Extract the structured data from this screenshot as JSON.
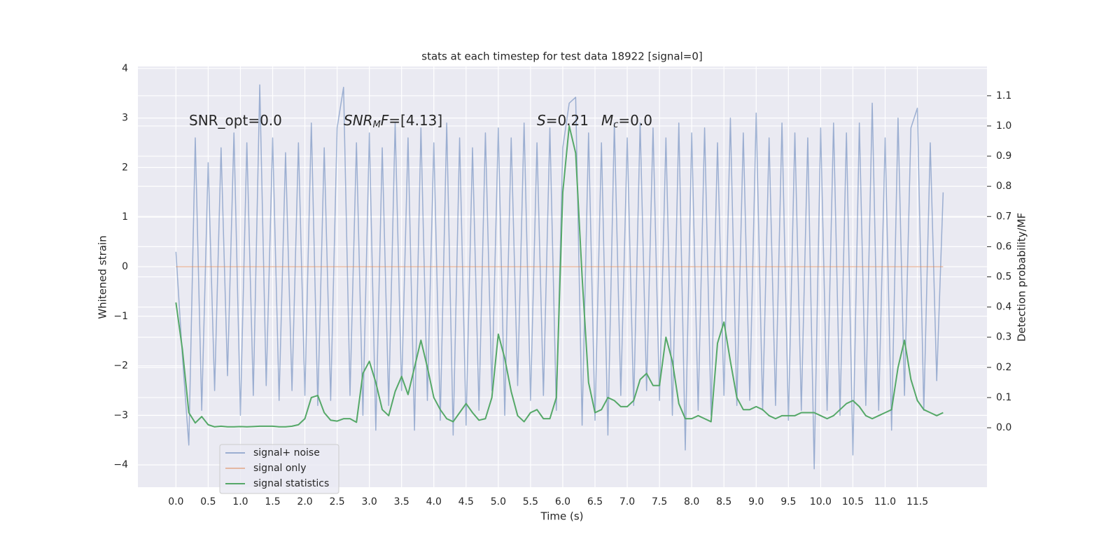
{
  "chart_data": {
    "type": "line",
    "title": "stats at each timestep for test data 18922 [signal=0]",
    "xlabel": "Time (s)",
    "ylabel": "Whitened strain",
    "y2label": "Detection probability/MF",
    "annotations": [
      [
        {
          "text": "SNR_opt=0.0",
          "style": "normal"
        }
      ],
      [
        {
          "text": "SNR",
          "style": "italic"
        },
        {
          "text": "M",
          "style": "sub"
        },
        {
          "text": "F",
          "style": "italic"
        },
        {
          "text": "=[4.13]",
          "style": "normal"
        }
      ],
      [
        {
          "text": "S",
          "style": "italic"
        },
        {
          "text": "=0.21",
          "style": "normal"
        }
      ],
      [
        {
          "text": "M",
          "style": "italic"
        },
        {
          "text": "c",
          "style": "sub"
        },
        {
          "text": "=0.0",
          "style": "normal"
        }
      ]
    ],
    "x": [
      0,
      0.1,
      0.2,
      0.3,
      0.4,
      0.5,
      0.6,
      0.7,
      0.8,
      0.9,
      1,
      1.1,
      1.2,
      1.3,
      1.4,
      1.5,
      1.6,
      1.7,
      1.8,
      1.9,
      2,
      2.1,
      2.2,
      2.3,
      2.4,
      2.5,
      2.6,
      2.7,
      2.8,
      2.9,
      3,
      3.1,
      3.2,
      3.3,
      3.4,
      3.5,
      3.6,
      3.7,
      3.8,
      3.9,
      4,
      4.1,
      4.2,
      4.3,
      4.4,
      4.5,
      4.6,
      4.7,
      4.8,
      4.9,
      5,
      5.1,
      5.2,
      5.3,
      5.4,
      5.5,
      5.6,
      5.7,
      5.8,
      5.9,
      6,
      6.1,
      6.2,
      6.3,
      6.4,
      6.5,
      6.6,
      6.7,
      6.8,
      6.9,
      7,
      7.1,
      7.2,
      7.3,
      7.4,
      7.5,
      7.6,
      7.7,
      7.8,
      7.9,
      8,
      8.1,
      8.2,
      8.3,
      8.4,
      8.5,
      8.6,
      8.7,
      8.8,
      8.9,
      9,
      9.1,
      9.2,
      9.3,
      9.4,
      9.5,
      9.6,
      9.7,
      9.8,
      9.9,
      10,
      10.1,
      10.2,
      10.3,
      10.4,
      10.5,
      10.6,
      10.7,
      10.8,
      10.9,
      11,
      11.1,
      11.2,
      11.3,
      11.4,
      11.5,
      11.6,
      11.7,
      11.8,
      11.9
    ],
    "series": [
      {
        "name": "signal+ noise",
        "color": "#4c72b0",
        "opacity": 0.5,
        "axis": "y",
        "values": [
          0.3,
          -1.8,
          -3.6,
          2.6,
          -2.9,
          2.1,
          -2.5,
          2.4,
          -2.2,
          2.7,
          -3.0,
          2.5,
          -2.6,
          3.67,
          -2.4,
          2.6,
          -2.7,
          2.3,
          -2.5,
          2.5,
          -2.6,
          2.9,
          -2.8,
          2.4,
          -2.7,
          2.8,
          3.62,
          -2.6,
          2.5,
          -3.0,
          2.7,
          -3.3,
          2.4,
          -2.8,
          2.9,
          -2.5,
          2.6,
          -3.3,
          2.8,
          -2.7,
          2.5,
          -3.1,
          2.9,
          -3.4,
          2.6,
          -3.2,
          2.4,
          -2.9,
          2.7,
          -2.5,
          2.8,
          -3.0,
          2.6,
          -2.4,
          2.9,
          -2.7,
          2.5,
          -2.6,
          2.8,
          -2.9,
          2.4,
          3.3,
          3.42,
          -3.2,
          2.7,
          -3.1,
          2.5,
          -3.4,
          2.9,
          -2.6,
          2.6,
          -2.8,
          2.9,
          -2.5,
          2.8,
          -2.7,
          2.6,
          -3.0,
          2.9,
          -3.7,
          2.7,
          -2.9,
          2.8,
          -3.0,
          2.5,
          -2.6,
          3.0,
          -2.8,
          2.7,
          -2.7,
          3.1,
          -2.9,
          2.6,
          -2.8,
          2.9,
          -3.1,
          2.7,
          -2.9,
          2.6,
          -4.08,
          2.8,
          -2.9,
          2.9,
          -3.0,
          2.7,
          -3.8,
          2.9,
          -2.8,
          3.3,
          -2.9,
          2.6,
          -3.3,
          3.0,
          -2.6,
          2.8,
          3.2,
          -2.9,
          2.5,
          -2.3,
          1.5
        ]
      },
      {
        "name": "signal only",
        "color": "#dd8452",
        "opacity": 0.5,
        "axis": "y",
        "values": [
          0,
          0,
          0,
          0,
          0,
          0,
          0,
          0,
          0,
          0,
          0,
          0,
          0,
          0,
          0,
          0,
          0,
          0,
          0,
          0,
          0,
          0,
          0,
          0,
          0,
          0,
          0,
          0,
          0,
          0,
          0,
          0,
          0,
          0,
          0,
          0,
          0,
          0,
          0,
          0,
          0,
          0,
          0,
          0,
          0,
          0,
          0,
          0,
          0,
          0,
          0,
          0,
          0,
          0,
          0,
          0,
          0,
          0,
          0,
          0,
          0,
          0,
          0,
          0,
          0,
          0,
          0,
          0,
          0,
          0,
          0,
          0,
          0,
          0,
          0,
          0,
          0,
          0,
          0,
          0,
          0,
          0,
          0,
          0,
          0,
          0,
          0,
          0,
          0,
          0,
          0,
          0,
          0,
          0,
          0,
          0,
          0,
          0,
          0,
          0,
          0,
          0,
          0,
          0,
          0,
          0,
          0,
          0,
          0,
          0,
          0,
          0,
          0,
          0,
          0,
          0,
          0,
          0,
          0,
          0
        ]
      },
      {
        "name": "signal statistics",
        "color": "#55a868",
        "opacity": 1,
        "axis": "y2",
        "values": [
          0.415,
          0.26,
          0.05,
          0.016,
          0.037,
          0.01,
          0.003,
          0.005,
          0.003,
          0.003,
          0.004,
          0.003,
          0.004,
          0.005,
          0.005,
          0.005,
          0.003,
          0.003,
          0.005,
          0.01,
          0.03,
          0.1,
          0.107,
          0.05,
          0.025,
          0.022,
          0.03,
          0.03,
          0.018,
          0.18,
          0.22,
          0.15,
          0.06,
          0.04,
          0.12,
          0.17,
          0.11,
          0.2,
          0.29,
          0.2,
          0.1,
          0.06,
          0.03,
          0.02,
          0.05,
          0.08,
          0.05,
          0.025,
          0.03,
          0.1,
          0.31,
          0.23,
          0.12,
          0.04,
          0.02,
          0.05,
          0.06,
          0.03,
          0.03,
          0.1,
          0.78,
          1.0,
          0.91,
          0.5,
          0.15,
          0.05,
          0.06,
          0.1,
          0.09,
          0.07,
          0.07,
          0.09,
          0.16,
          0.18,
          0.14,
          0.14,
          0.3,
          0.22,
          0.08,
          0.03,
          0.03,
          0.04,
          0.03,
          0.02,
          0.28,
          0.35,
          0.22,
          0.1,
          0.06,
          0.06,
          0.07,
          0.06,
          0.04,
          0.03,
          0.04,
          0.04,
          0.04,
          0.05,
          0.05,
          0.05,
          0.04,
          0.03,
          0.04,
          0.06,
          0.08,
          0.09,
          0.07,
          0.04,
          0.03,
          0.04,
          0.05,
          0.06,
          0.2,
          0.29,
          0.16,
          0.09,
          0.06,
          0.05,
          0.04,
          0.05
        ]
      }
    ],
    "xlim": [
      -0.59,
      12.58
    ],
    "ylim": [
      -4.45,
      4.04
    ],
    "y2lim": [
      -0.197,
      1.197
    ],
    "xticks": [
      {
        "value": 0,
        "label": "0.0"
      },
      {
        "value": 0.5,
        "label": "0.5"
      },
      {
        "value": 1,
        "label": "1.0"
      },
      {
        "value": 1.5,
        "label": "1.5"
      },
      {
        "value": 2,
        "label": "2.0"
      },
      {
        "value": 2.5,
        "label": "2.5"
      },
      {
        "value": 3,
        "label": "3.0"
      },
      {
        "value": 3.5,
        "label": "3.5"
      },
      {
        "value": 4,
        "label": "4.0"
      },
      {
        "value": 4.5,
        "label": "4.5"
      },
      {
        "value": 5,
        "label": "5.0"
      },
      {
        "value": 5.5,
        "label": "5.5"
      },
      {
        "value": 6,
        "label": "6.0"
      },
      {
        "value": 6.5,
        "label": "6.5"
      },
      {
        "value": 7,
        "label": "7.0"
      },
      {
        "value": 7.5,
        "label": "7.5"
      },
      {
        "value": 8,
        "label": "8.0"
      },
      {
        "value": 8.5,
        "label": "8.5"
      },
      {
        "value": 9,
        "label": "9.0"
      },
      {
        "value": 9.5,
        "label": "9.5"
      },
      {
        "value": 10,
        "label": "10.0"
      },
      {
        "value": 10.5,
        "label": "10.5"
      },
      {
        "value": 11,
        "label": "11.0"
      },
      {
        "value": 11.5,
        "label": "11.5"
      }
    ],
    "yticks": [
      {
        "value": -4,
        "label": "−4"
      },
      {
        "value": -3,
        "label": "−3"
      },
      {
        "value": -2,
        "label": "−2"
      },
      {
        "value": -1,
        "label": "−1"
      },
      0,
      1,
      2,
      3,
      4
    ],
    "y2ticks": [
      {
        "value": 0,
        "label": "0.0"
      },
      {
        "value": 0.1,
        "label": "0.1"
      },
      {
        "value": 0.2,
        "label": "0.2"
      },
      {
        "value": 0.3,
        "label": "0.3"
      },
      {
        "value": 0.4,
        "label": "0.4"
      },
      {
        "value": 0.5,
        "label": "0.5"
      },
      {
        "value": 0.6,
        "label": "0.6"
      },
      {
        "value": 0.7,
        "label": "0.7"
      },
      {
        "value": 0.8,
        "label": "0.8"
      },
      {
        "value": 0.9,
        "label": "0.9"
      },
      {
        "value": 1,
        "label": "1.0"
      },
      {
        "value": 1.1,
        "label": "1.1"
      }
    ],
    "grid": true,
    "background": "#eaeaf2"
  }
}
